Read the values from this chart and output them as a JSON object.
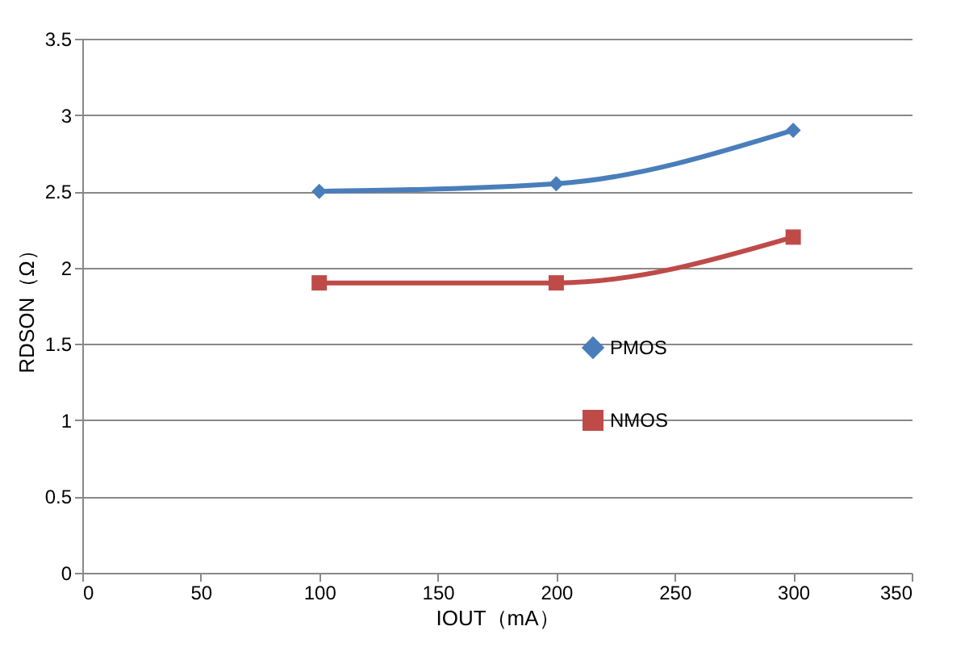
{
  "chart_data": {
    "type": "line",
    "xlabel": "IOUT（mA）",
    "ylabel": "RDSON（Ω）",
    "x": [
      100,
      200,
      300
    ],
    "series": [
      {
        "name": "PMOS",
        "color": "#4a7ebb",
        "marker": "diamond",
        "values": [
          2.5,
          2.55,
          2.9
        ]
      },
      {
        "name": "NMOS",
        "color": "#be4b48",
        "marker": "square",
        "values": [
          1.9,
          1.9,
          2.2
        ]
      }
    ],
    "xlim": [
      0,
      350
    ],
    "xticks": [
      0,
      50,
      100,
      150,
      200,
      250,
      300,
      350
    ],
    "ylim": [
      0,
      3.5
    ],
    "yticks": [
      0,
      0.5,
      1,
      1.5,
      2,
      2.5,
      3,
      3.5
    ],
    "grid": "y",
    "legend": "right",
    "line_style": "solid"
  }
}
